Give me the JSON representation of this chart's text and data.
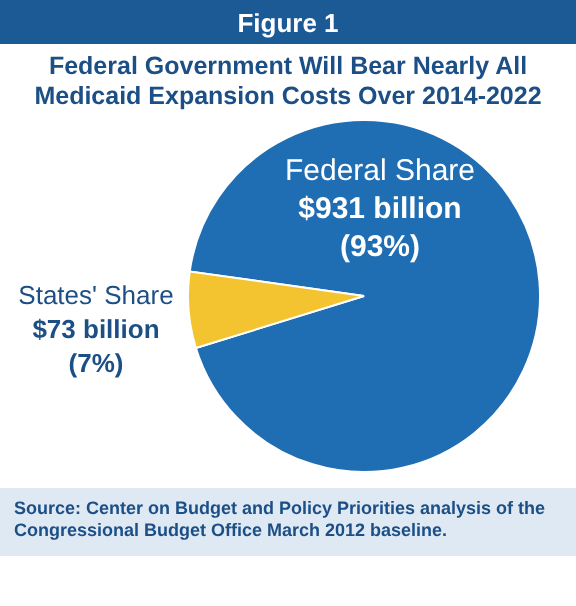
{
  "chart_data": {
    "type": "pie",
    "title": "Federal Government Will Bear Nearly All Medicaid Expansion Costs Over 2014-2022",
    "subtitle": "Figure 1",
    "categories": [
      "Federal Share",
      "States' Share"
    ],
    "values": [
      93,
      7
    ],
    "colors": [
      "#1f6db3",
      "#f4c430"
    ],
    "value_labels": [
      "$931 billion (93%)",
      "$73 billion (7%)"
    ],
    "annotations": [
      "Source: Center on Budget and Policy Priorities analysis of the Congressional Budget Office March 2012 baseline."
    ]
  }
}
